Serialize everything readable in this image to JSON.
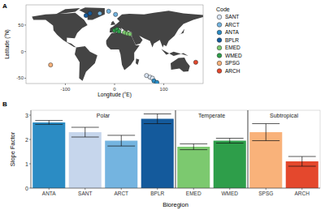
{
  "chart_data": [
    {
      "type": "scatter",
      "panel": "A",
      "x_label": "Longitude (°E)",
      "y_label": "Latitude (°N)",
      "xlim": [
        -180,
        180
      ],
      "ylim": [
        -60,
        88
      ],
      "xticks": [
        -100,
        0,
        100
      ],
      "yticks": [
        -50,
        0,
        50
      ],
      "legend": "right",
      "legend_title": "Code",
      "series": [
        {
          "name": "SANT",
          "color": "#dbe6f4",
          "x": [
            65,
            72,
            77
          ],
          "values": [
            -45,
            -48,
            -50
          ]
        },
        {
          "name": "ARCT",
          "color": "#74b4e0",
          "x": [
            -30,
            -12,
            2
          ],
          "values": [
            72,
            76,
            70
          ]
        },
        {
          "name": "ANTA",
          "color": "#2b8cc4",
          "x": [
            80,
            86
          ],
          "values": [
            -55,
            -58
          ]
        },
        {
          "name": "BPLR",
          "color": "#145a9c",
          "x": [
            -58,
            -50
          ],
          "values": [
            68,
            72
          ]
        },
        {
          "name": "EMED",
          "color": "#7cc96f",
          "x": [
            20,
            26,
            31
          ],
          "values": [
            36,
            34,
            33
          ]
        },
        {
          "name": "WMED",
          "color": "#2e9e4a",
          "x": [
            0,
            5,
            9
          ],
          "values": [
            40,
            42,
            38
          ]
        },
        {
          "name": "SPSG",
          "color": "#f9b27a",
          "x": [
            -130
          ],
          "values": [
            -25
          ]
        },
        {
          "name": "ARCH",
          "color": "#e4482d",
          "x": [
            165
          ],
          "values": [
            -20
          ]
        }
      ]
    },
    {
      "type": "bar",
      "panel": "B",
      "x_label": "Bioregion",
      "y_label": "Slope Factor",
      "categories": [
        "ANTA",
        "SANT",
        "ARCT",
        "BPLR",
        "EMED",
        "WMED",
        "SPSG",
        "ARCH"
      ],
      "values": [
        2.7,
        2.3,
        1.95,
        2.85,
        1.7,
        1.95,
        2.3,
        1.1
      ],
      "errors": [
        0.08,
        0.2,
        0.22,
        0.2,
        0.12,
        0.1,
        0.35,
        0.2
      ],
      "colors": [
        "#2b8cc4",
        "#c6d6ec",
        "#74b4e0",
        "#145a9c",
        "#7cc96f",
        "#2e9e4a",
        "#f9b27a",
        "#e4482d"
      ],
      "ylim": [
        0,
        3.2
      ],
      "yticks": [
        0,
        1,
        2,
        3
      ],
      "annotations": [
        {
          "text": "Polar",
          "categories": [
            "ANTA",
            "SANT",
            "ARCT",
            "BPLR"
          ]
        },
        {
          "text": "Temperate",
          "categories": [
            "EMED",
            "WMED"
          ]
        },
        {
          "text": "Subtropical",
          "categories": [
            "SPSG",
            "ARCH"
          ]
        }
      ]
    }
  ]
}
